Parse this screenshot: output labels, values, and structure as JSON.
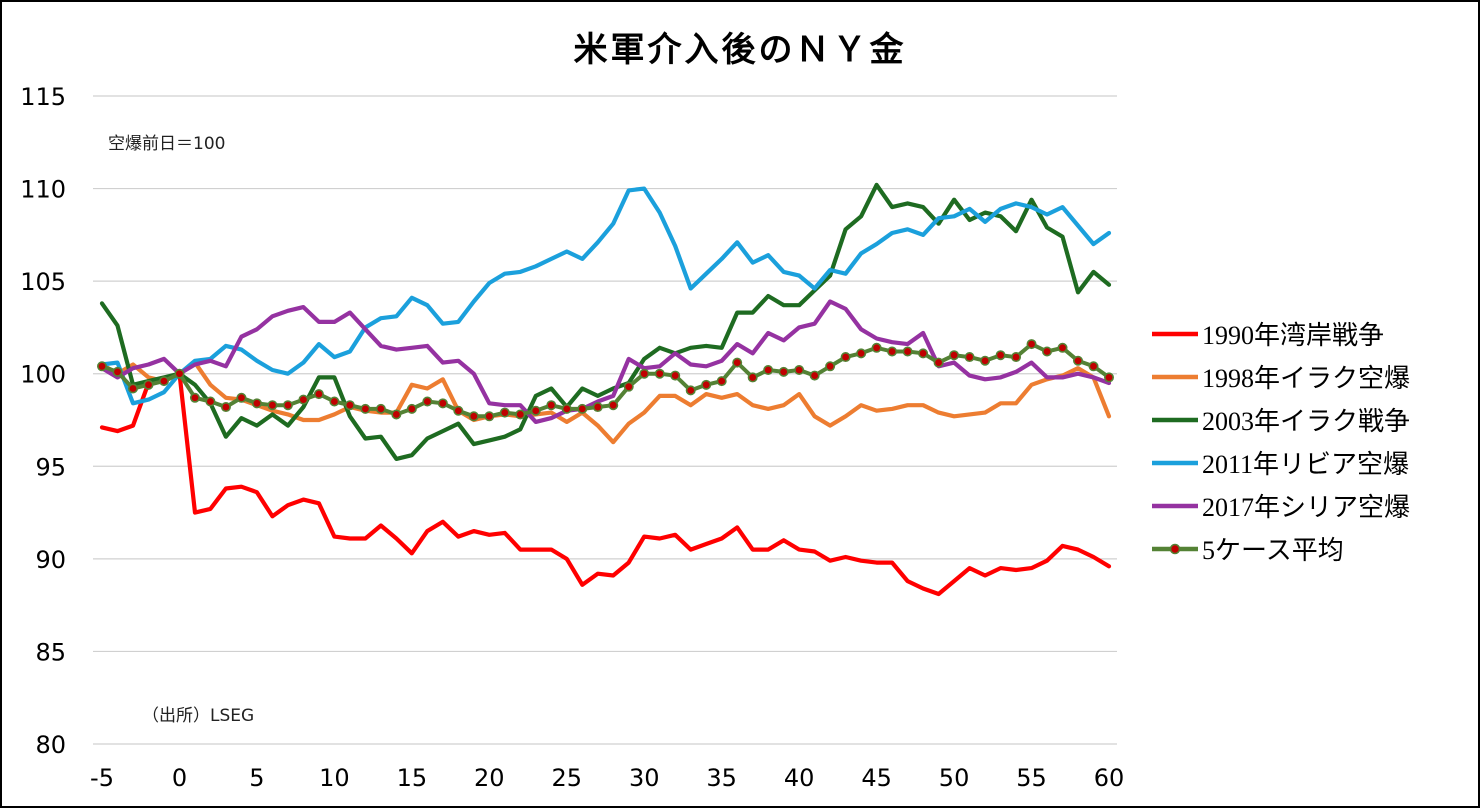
{
  "chart_data": {
    "type": "line",
    "title": "米軍介入後のＮＹ金",
    "notes": {
      "base": "空爆前日＝100",
      "source": "（出所）LSEG"
    },
    "xlabel": "",
    "ylabel": "",
    "xlim": [
      -5,
      60
    ],
    "ylim": [
      80,
      115
    ],
    "x_ticks": [
      "-5",
      "0",
      "5",
      "10",
      "15",
      "20",
      "25",
      "30",
      "35",
      "40",
      "45",
      "50",
      "55",
      "60"
    ],
    "y_ticks": [
      "80",
      "85",
      "90",
      "95",
      "100",
      "105",
      "110",
      "115"
    ],
    "grid": "horizontal",
    "legend_position": "right",
    "x": [
      -5,
      -4,
      -3,
      -2,
      -1,
      0,
      1,
      2,
      3,
      4,
      5,
      6,
      7,
      8,
      9,
      10,
      11,
      12,
      13,
      14,
      15,
      16,
      17,
      18,
      19,
      20,
      21,
      22,
      23,
      24,
      25,
      26,
      27,
      28,
      29,
      30,
      31,
      32,
      33,
      34,
      35,
      36,
      37,
      38,
      39,
      40,
      41,
      42,
      43,
      44,
      45,
      46,
      47,
      48,
      49,
      50,
      51,
      52,
      53,
      54,
      55,
      56,
      57,
      58,
      59,
      60
    ],
    "series": [
      {
        "name": "1990年湾岸戦争",
        "color": "#ff0000",
        "marker": false,
        "values": [
          97.1,
          96.9,
          97.2,
          99.5,
          99.6,
          100.0,
          92.5,
          92.7,
          93.8,
          93.9,
          93.6,
          92.3,
          92.9,
          93.2,
          93.0,
          91.2,
          91.1,
          91.1,
          91.8,
          91.1,
          90.3,
          91.5,
          92.0,
          91.2,
          91.5,
          91.3,
          91.4,
          90.5,
          90.5,
          90.5,
          90.0,
          88.6,
          89.2,
          89.1,
          89.8,
          91.2,
          91.1,
          91.3,
          90.5,
          90.8,
          91.1,
          91.7,
          90.5,
          90.5,
          91.0,
          90.5,
          90.4,
          89.9,
          90.1,
          89.9,
          89.8,
          89.8,
          88.8,
          88.4,
          88.1,
          88.8,
          89.5,
          89.1,
          89.5,
          89.4,
          89.5,
          89.9,
          90.7,
          90.5,
          90.1,
          89.6
        ]
      },
      {
        "name": "1998年イラク空爆",
        "color": "#ed7d31",
        "marker": false,
        "values": [
          100.5,
          100.0,
          100.5,
          99.8,
          99.6,
          100.0,
          100.6,
          99.4,
          98.7,
          98.6,
          98.3,
          98.0,
          97.8,
          97.5,
          97.5,
          97.8,
          98.2,
          98.0,
          97.9,
          97.9,
          99.4,
          99.2,
          99.7,
          98.0,
          97.5,
          97.7,
          97.8,
          97.7,
          97.8,
          97.9,
          97.4,
          97.9,
          97.2,
          96.3,
          97.3,
          97.9,
          98.8,
          98.8,
          98.3,
          98.9,
          98.7,
          98.9,
          98.3,
          98.1,
          98.3,
          98.9,
          97.7,
          97.2,
          97.7,
          98.3,
          98.0,
          98.1,
          98.3,
          98.3,
          97.9,
          97.7,
          97.8,
          97.9,
          98.4,
          98.4,
          99.4,
          99.7,
          99.9,
          100.3,
          99.8,
          97.7
        ]
      },
      {
        "name": "2003年イラク戦争",
        "color": "#1e6b21",
        "marker": false,
        "values": [
          103.8,
          102.6,
          99.4,
          99.6,
          99.8,
          100.0,
          99.4,
          98.4,
          96.6,
          97.6,
          97.2,
          97.8,
          97.2,
          98.2,
          99.8,
          99.8,
          97.7,
          96.5,
          96.6,
          95.4,
          95.6,
          96.5,
          96.9,
          97.3,
          96.2,
          96.4,
          96.6,
          97.0,
          98.8,
          99.2,
          98.2,
          99.2,
          98.8,
          99.2,
          99.5,
          100.8,
          101.4,
          101.1,
          101.4,
          101.5,
          101.4,
          103.3,
          103.3,
          104.2,
          103.7,
          103.7,
          104.5,
          105.3,
          107.8,
          108.5,
          110.2,
          109.0,
          109.2,
          109.0,
          108.1,
          109.4,
          108.3,
          108.7,
          108.5,
          107.7,
          109.4,
          107.9,
          107.4,
          104.4,
          105.5,
          104.8
        ]
      },
      {
        "name": "2011年リビア空爆",
        "color": "#1ba0dc",
        "marker": false,
        "values": [
          100.5,
          100.6,
          98.4,
          98.6,
          99.0,
          100.0,
          100.7,
          100.8,
          101.5,
          101.3,
          100.7,
          100.2,
          100.0,
          100.6,
          101.6,
          100.9,
          101.2,
          102.5,
          103.0,
          103.1,
          104.1,
          103.7,
          102.7,
          102.8,
          103.9,
          104.9,
          105.4,
          105.5,
          105.8,
          106.2,
          106.6,
          106.2,
          107.1,
          108.1,
          109.9,
          110.0,
          108.7,
          106.9,
          104.6,
          105.4,
          106.2,
          107.1,
          106.0,
          106.4,
          105.5,
          105.3,
          104.6,
          105.6,
          105.4,
          106.5,
          107.0,
          107.6,
          107.8,
          107.5,
          108.4,
          108.5,
          108.9,
          108.2,
          108.9,
          109.2,
          109.0,
          108.6,
          109.0,
          108.0,
          107.0,
          107.6
        ]
      },
      {
        "name": "2017年シリア空爆",
        "color": "#9532a1",
        "marker": false,
        "values": [
          100.3,
          99.8,
          100.3,
          100.5,
          100.8,
          100.0,
          100.5,
          100.7,
          100.4,
          102.0,
          102.4,
          103.1,
          103.4,
          103.6,
          102.8,
          102.8,
          103.3,
          102.4,
          101.5,
          101.3,
          101.4,
          101.5,
          100.6,
          100.7,
          100.0,
          98.4,
          98.3,
          98.3,
          97.4,
          97.6,
          98.0,
          98.1,
          98.5,
          98.8,
          100.8,
          100.3,
          100.4,
          101.1,
          100.5,
          100.4,
          100.7,
          101.6,
          101.1,
          102.2,
          101.8,
          102.5,
          102.7,
          103.9,
          103.5,
          102.4,
          101.9,
          101.7,
          101.6,
          102.2,
          100.4,
          100.6,
          99.9,
          99.7,
          99.8,
          100.1,
          100.6,
          99.8,
          99.8,
          100.0,
          99.8,
          99.5
        ]
      },
      {
        "name": "5ケース平均",
        "color": "#548235",
        "marker": true,
        "values": [
          100.4,
          100.1,
          99.2,
          99.4,
          99.6,
          100.0,
          98.7,
          98.5,
          98.2,
          98.7,
          98.4,
          98.3,
          98.3,
          98.6,
          98.9,
          98.5,
          98.3,
          98.1,
          98.1,
          97.8,
          98.1,
          98.5,
          98.4,
          98.0,
          97.7,
          97.7,
          97.9,
          97.8,
          98.0,
          98.3,
          98.1,
          98.1,
          98.2,
          98.3,
          99.3,
          100.0,
          100.0,
          99.9,
          99.1,
          99.4,
          99.6,
          100.6,
          99.8,
          100.2,
          100.1,
          100.2,
          99.9,
          100.4,
          100.9,
          101.1,
          101.4,
          101.2,
          101.2,
          101.1,
          100.6,
          101.0,
          100.9,
          100.7,
          101.0,
          100.9,
          101.6,
          101.2,
          101.4,
          100.7,
          100.4,
          99.8
        ]
      }
    ]
  }
}
